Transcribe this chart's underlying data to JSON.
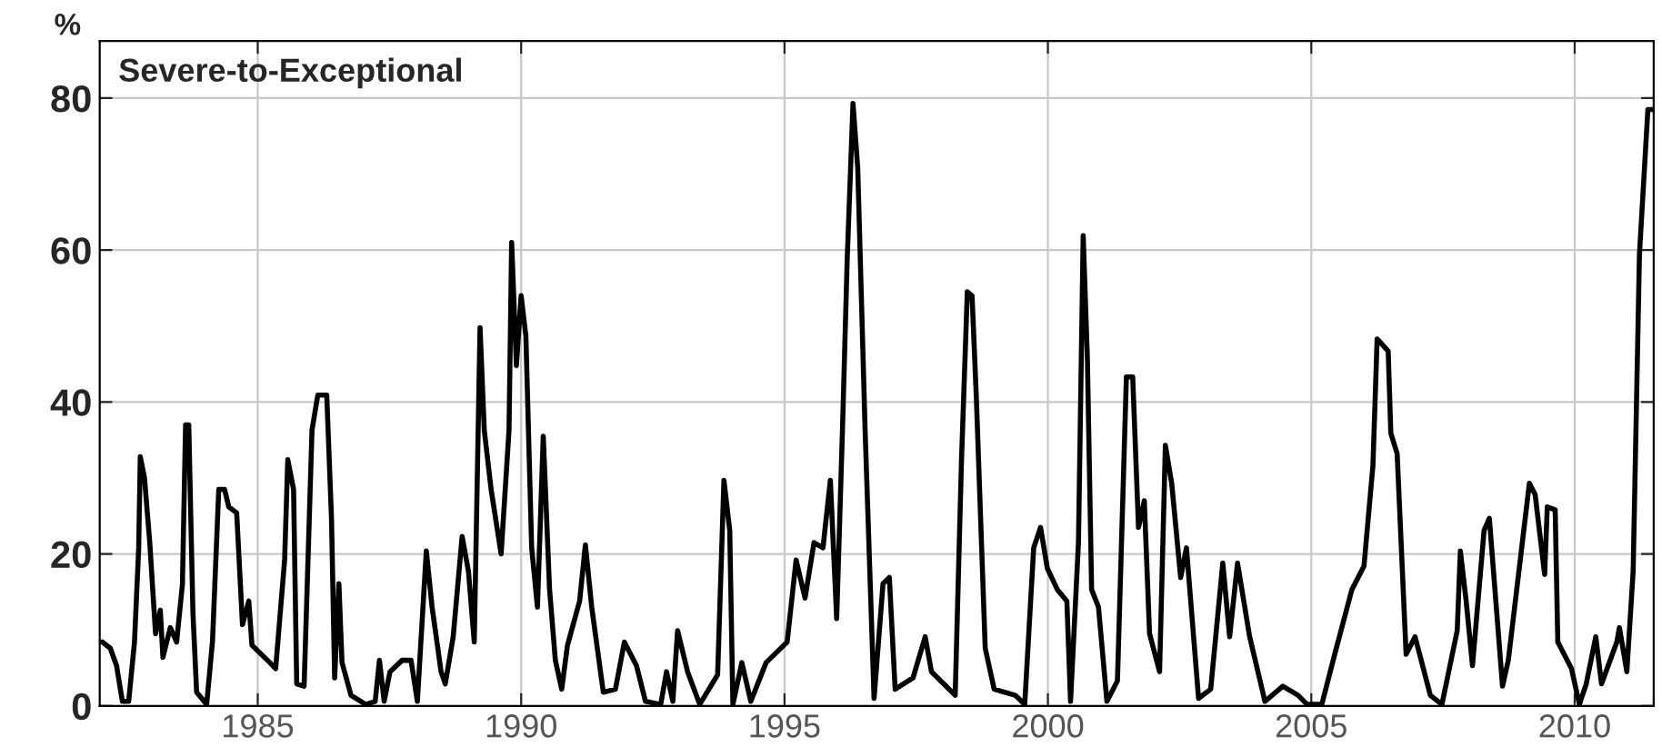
{
  "chart_data": {
    "type": "line",
    "title": "Severe-to-Exceptional",
    "ylabel": "%",
    "x": [
      1982.05,
      1982.2,
      1982.32,
      1982.43,
      1982.55,
      1982.66,
      1982.74,
      1982.77,
      1982.85,
      1982.95,
      1983.06,
      1983.15,
      1983.2,
      1983.34,
      1983.46,
      1983.57,
      1983.63,
      1983.69,
      1983.77,
      1983.84,
      1984.03,
      1984.14,
      1984.26,
      1984.37,
      1984.45,
      1984.6,
      1984.71,
      1984.83,
      1984.89,
      1985.23,
      1985.34,
      1985.51,
      1985.57,
      1985.68,
      1985.74,
      1985.88,
      1986.03,
      1986.14,
      1986.31,
      1986.4,
      1986.46,
      1986.54,
      1986.6,
      1986.77,
      1987.05,
      1987.23,
      1987.31,
      1987.4,
      1987.51,
      1987.74,
      1987.91,
      1988.03,
      1988.2,
      1988.31,
      1988.48,
      1988.56,
      1988.71,
      1988.88,
      1989.0,
      1989.11,
      1989.17,
      1989.22,
      1989.3,
      1989.43,
      1989.62,
      1989.77,
      1989.82,
      1989.91,
      1990.0,
      1990.09,
      1990.2,
      1990.31,
      1990.42,
      1990.54,
      1990.65,
      1990.77,
      1990.88,
      1991.11,
      1991.22,
      1991.34,
      1991.56,
      1991.79,
      1991.96,
      1992.19,
      1992.36,
      1992.65,
      1992.76,
      1992.88,
      1992.97,
      1993.16,
      1993.39,
      1993.73,
      1993.85,
      1993.96,
      1994.02,
      1994.19,
      1994.36,
      1994.65,
      1995.05,
      1995.22,
      1995.39,
      1995.56,
      1995.73,
      1995.87,
      1995.99,
      1996.1,
      1996.19,
      1996.3,
      1996.39,
      1996.53,
      1996.7,
      1996.87,
      1996.99,
      1997.1,
      1997.44,
      1997.67,
      1997.79,
      1998.24,
      1998.36,
      1998.47,
      1998.56,
      1998.64,
      1998.81,
      1998.98,
      1999.38,
      1999.56,
      1999.73,
      1999.86,
      1999.99,
      2000.18,
      2000.36,
      2000.43,
      2000.58,
      2000.67,
      2000.75,
      2000.83,
      2000.96,
      2001.12,
      2001.32,
      2001.49,
      2001.61,
      2001.72,
      2001.83,
      2001.93,
      2002.12,
      2002.23,
      2002.35,
      2002.52,
      2002.63,
      2002.86,
      2003.09,
      2003.32,
      2003.45,
      2003.6,
      2003.83,
      2004.12,
      2004.46,
      2004.75,
      2004.92,
      2005.2,
      2005.43,
      2005.77,
      2006.0,
      2006.17,
      2006.25,
      2006.46,
      2006.51,
      2006.63,
      2006.8,
      2006.97,
      2007.26,
      2007.48,
      2007.77,
      2007.83,
      2007.94,
      2008.06,
      2008.28,
      2008.38,
      2008.63,
      2008.74,
      2009.14,
      2009.25,
      2009.43,
      2009.48,
      2009.63,
      2009.68,
      2009.94,
      2010.09,
      2010.22,
      2010.4,
      2010.51,
      2010.8,
      2010.85,
      2010.99,
      2011.11,
      2011.23,
      2011.39,
      2011.47
    ],
    "series": [
      {
        "color": "#000000",
        "values": [
          8.4,
          7.6,
          5.3,
          0.6,
          0.6,
          8.4,
          20.8,
          32.8,
          30,
          21.5,
          9.5,
          12.6,
          6.4,
          10.3,
          8.4,
          16,
          37,
          37,
          12.2,
          1.8,
          0.2,
          8.4,
          28.5,
          28.5,
          26.2,
          25.4,
          10.7,
          13.8,
          8,
          5.7,
          4.9,
          19.2,
          32.4,
          28.5,
          2.9,
          2.6,
          36.3,
          40.9,
          40.9,
          24.7,
          3.7,
          16.1,
          5.7,
          1.4,
          0.2,
          0.6,
          6,
          0.6,
          4.5,
          6,
          6,
          0.6,
          20.4,
          13,
          4.5,
          2.9,
          9.1,
          22.3,
          17.7,
          8.4,
          30.9,
          49.8,
          36.3,
          28.5,
          20,
          36.3,
          61,
          44.8,
          54,
          48.7,
          20.8,
          13,
          35.5,
          15.3,
          6,
          2.2,
          8,
          13.8,
          21.2,
          13,
          1.8,
          2.2,
          8.4,
          5.3,
          0.6,
          0.2,
          4.5,
          0.6,
          9.9,
          4.5,
          0.2,
          4.1,
          29.7,
          23.1,
          0.2,
          5.7,
          0.6,
          5.7,
          8.4,
          19.2,
          14.2,
          21.5,
          20.8,
          29.7,
          11.5,
          36.3,
          58.8,
          79.3,
          70.8,
          36.3,
          1,
          16.1,
          16.9,
          2.2,
          3.7,
          9.1,
          4.5,
          1.4,
          32.4,
          54.5,
          54,
          40.9,
          7.6,
          2.2,
          1.4,
          0.2,
          20.8,
          23.5,
          18.1,
          15.3,
          13.8,
          0.6,
          21.5,
          61.9,
          45.6,
          15.3,
          13,
          0.6,
          3.3,
          43.3,
          43.3,
          23.5,
          27,
          9.5,
          4.5,
          34.3,
          29.3,
          16.9,
          20.8,
          1,
          2.2,
          18.8,
          9.1,
          18.8,
          9.1,
          0.6,
          2.6,
          1.4,
          0.2,
          0.2,
          6.4,
          15.3,
          18.4,
          31.6,
          48.3,
          46.7,
          35.9,
          33.2,
          6.8,
          9.1,
          1.4,
          0.2,
          9.9,
          20.4,
          13.8,
          5.3,
          23.1,
          24.7,
          2.6,
          6,
          29.3,
          27.8,
          17.3,
          26.2,
          25.8,
          8.4,
          4.9,
          0.2,
          2.9,
          9.1,
          2.9,
          8.4,
          10.3,
          4.5,
          17.7,
          59.5,
          78.5,
          78.5
        ]
      }
    ],
    "xlim": [
      1982.0,
      2011.5
    ],
    "ylim": [
      0,
      87.5
    ],
    "xticks": [
      1985,
      1990,
      1995,
      2000,
      2005,
      2010
    ],
    "yticks": [
      0,
      20,
      40,
      60,
      80
    ],
    "grid": true,
    "marker": "none",
    "line_style": "solid"
  }
}
